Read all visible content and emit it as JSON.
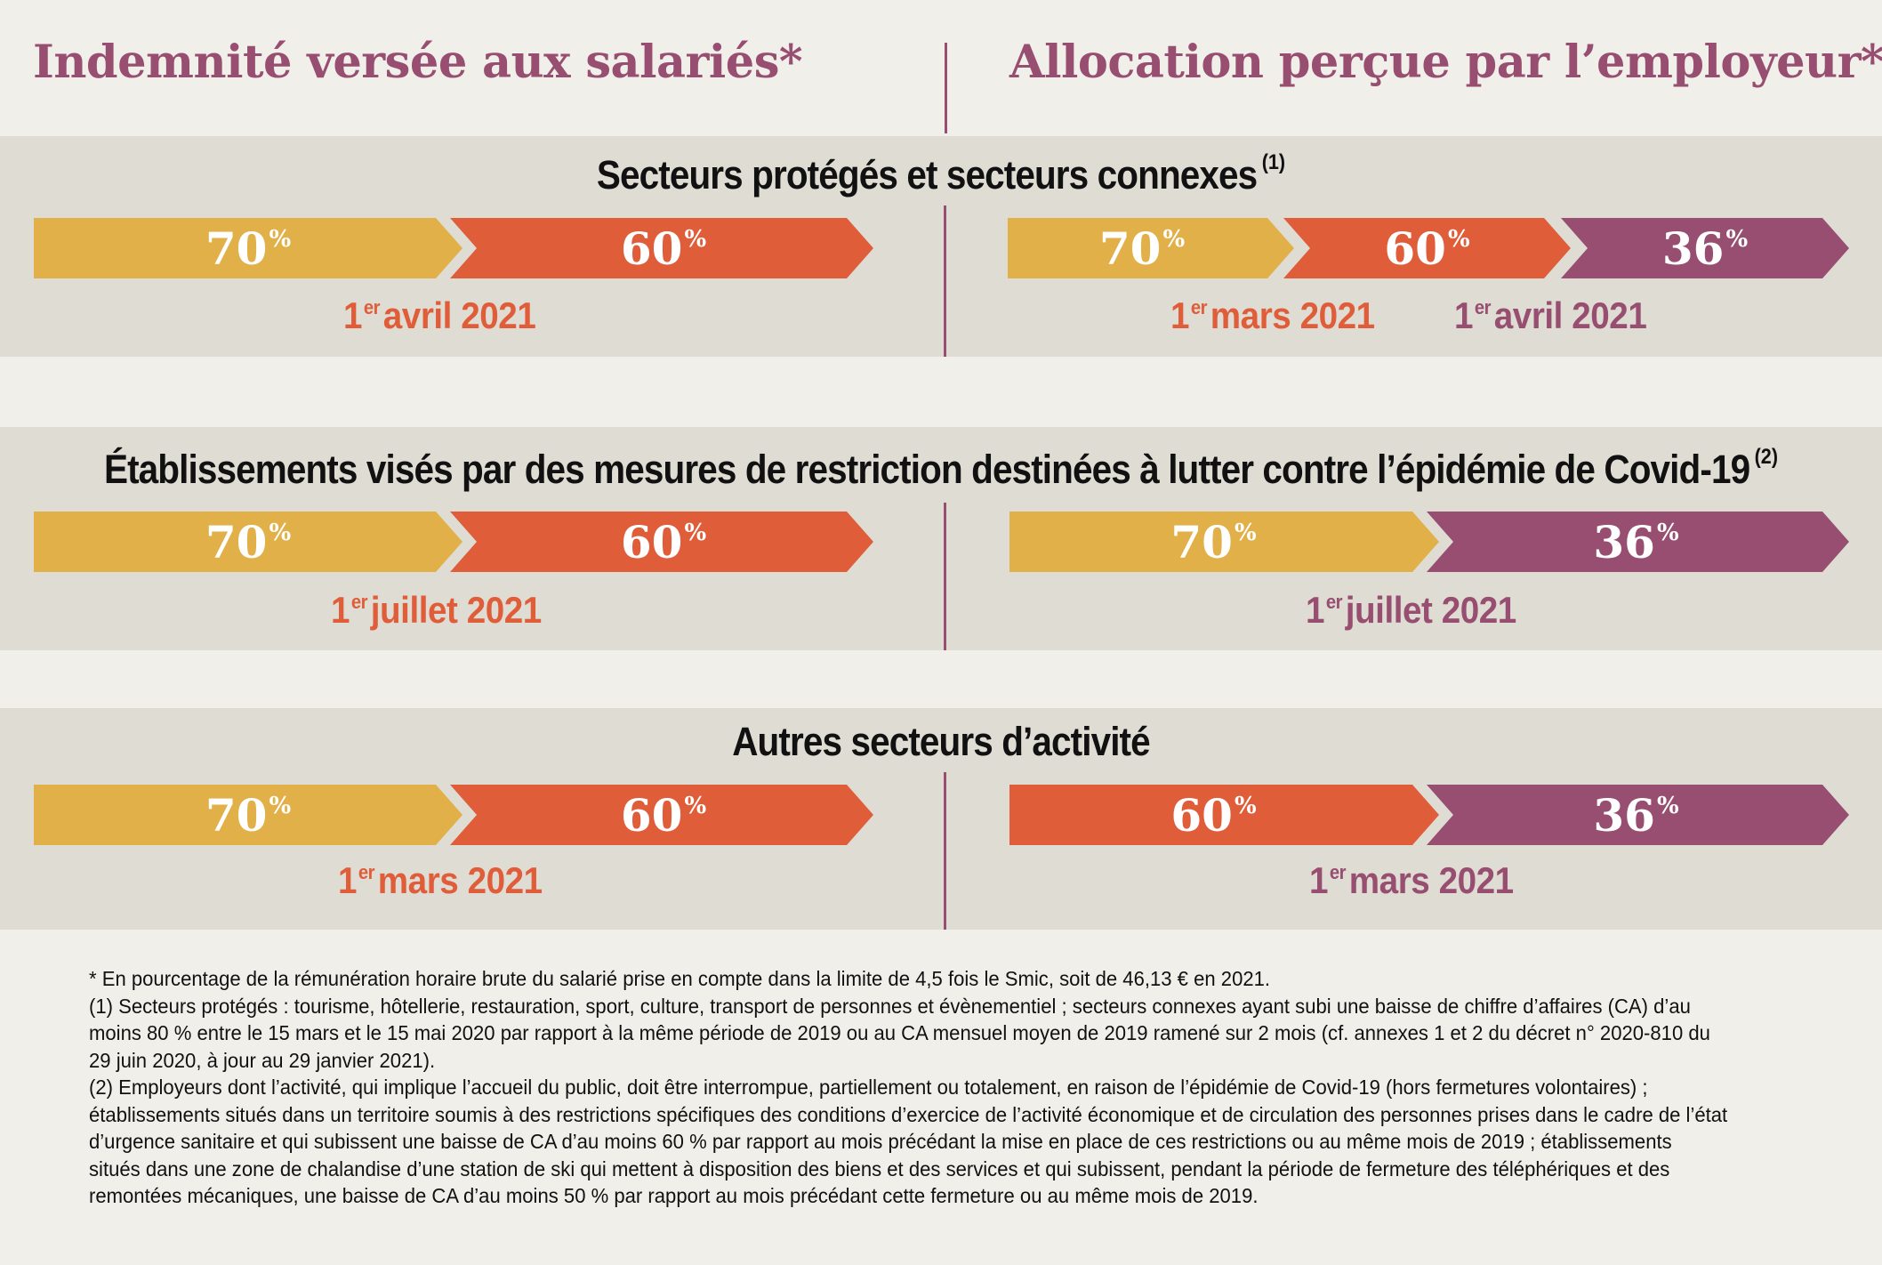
{
  "headers": {
    "left": "Indemnité versée aux salariés*",
    "right": "Allocation perçue par l’employeur*"
  },
  "sections": [
    {
      "title": "Secteurs protégés et secteurs connexes",
      "note_ref": "(1)",
      "left": {
        "arrows": [
          {
            "value": "70",
            "unit": "%",
            "color": "#e1b048"
          },
          {
            "value": "60",
            "unit": "%",
            "color": "#e05d3a"
          }
        ],
        "dates": [
          {
            "num": "1",
            "sup": "er",
            "text": "avril 2021",
            "color": "#e05d3a"
          }
        ]
      },
      "right": {
        "arrows": [
          {
            "value": "70",
            "unit": "%",
            "color": "#e1b048"
          },
          {
            "value": "60",
            "unit": "%",
            "color": "#e05d3a"
          },
          {
            "value": "36",
            "unit": "%",
            "color": "#974e70"
          }
        ],
        "dates": [
          {
            "num": "1",
            "sup": "er",
            "text": "mars 2021",
            "color": "#e05d3a"
          },
          {
            "num": "1",
            "sup": "er",
            "text": "avril 2021",
            "color": "#974e70"
          }
        ]
      }
    },
    {
      "title": "Établissements visés par des mesures de restriction destinées à lutter contre l’épidémie de Covid-19",
      "note_ref": "(2)",
      "left": {
        "arrows": [
          {
            "value": "70",
            "unit": "%",
            "color": "#e1b048"
          },
          {
            "value": "60",
            "unit": "%",
            "color": "#e05d3a"
          }
        ],
        "dates": [
          {
            "num": "1",
            "sup": "er",
            "text": "juillet 2021",
            "color": "#e05d3a"
          }
        ]
      },
      "right": {
        "arrows": [
          {
            "value": "70",
            "unit": "%",
            "color": "#e1b048"
          },
          {
            "value": "36",
            "unit": "%",
            "color": "#974e70"
          }
        ],
        "dates": [
          {
            "num": "1",
            "sup": "er",
            "text": "juillet 2021",
            "color": "#974e70"
          }
        ]
      }
    },
    {
      "title": "Autres secteurs d’activité",
      "note_ref": "",
      "left": {
        "arrows": [
          {
            "value": "70",
            "unit": "%",
            "color": "#e1b048"
          },
          {
            "value": "60",
            "unit": "%",
            "color": "#e05d3a"
          }
        ],
        "dates": [
          {
            "num": "1",
            "sup": "er",
            "text": "mars 2021",
            "color": "#e05d3a"
          }
        ]
      },
      "right": {
        "arrows": [
          {
            "value": "60",
            "unit": "%",
            "color": "#e05d3a"
          },
          {
            "value": "36",
            "unit": "%",
            "color": "#974e70"
          }
        ],
        "dates": [
          {
            "num": "1",
            "sup": "er",
            "text": "mars 2021",
            "color": "#974e70"
          }
        ]
      }
    }
  ],
  "footnotes": [
    "* En pourcentage de la rémunération horaire brute du salarié prise en compte dans la limite de 4,5 fois le Smic, soit de 46,13 € en 2021.",
    "(1) Secteurs protégés : tourisme, hôtellerie, restauration, sport, culture, transport de personnes et évènementiel ; secteurs connexes ayant subi une baisse de chiffre d’affaires (CA) d’au moins 80 % entre le 15 mars et le 15 mai 2020 par rapport à la même période de 2019 ou au CA mensuel moyen de 2019 ramené sur 2 mois (cf. annexes 1 et 2 du décret n° 2020-810 du 29 juin 2020, à jour au 29 janvier 2021).",
    "(2) Employeurs dont l’activité, qui implique l’accueil du public, doit être interrompue, partiellement ou totalement, en raison de l’épidémie de Covid-19 (hors fermetures volontaires) ; établissements situés dans un territoire soumis à des restrictions spécifiques des conditions d’exercice de l’activité économique et de circulation des personnes prises dans le cadre de l’état d’urgence sanitaire et qui subissent une baisse de CA d’au moins 60 % par rapport au mois précédant la mise en place de ces restrictions ou au même mois de 2019 ; établissements situés dans une zone de chalandise d’une station de ski qui mettent à disposition des biens et des services et qui subissent, pendant la période de fermeture des téléphériques et des remontées mécaniques, une baisse de CA d’au moins 50 % par rapport au mois précédant cette fermeture ou au même mois de 2019."
  ]
}
